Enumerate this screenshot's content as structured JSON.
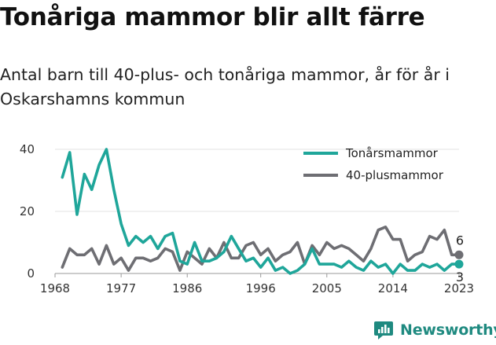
{
  "header": {
    "title": "Tonåriga mammor blir allt färre",
    "subtitle": "Antal barn till 40-plus- och tonåriga mammor, år för år i Oskarshamns kommun"
  },
  "brand": {
    "name": "Newsworthy",
    "icon": "newsworthy-logo-icon",
    "color": "#1f8a80"
  },
  "chart_data": {
    "type": "line",
    "x_ticks": [
      "1968",
      "1977",
      "1986",
      "1996",
      "2005",
      "2014",
      "2023"
    ],
    "y_ticks": [
      "0",
      "20",
      "40"
    ],
    "xlim": [
      1968,
      2023
    ],
    "ylim": [
      0,
      40
    ],
    "grid": true,
    "legend_position": "top-right",
    "x": [
      1969,
      1970,
      1971,
      1972,
      1973,
      1974,
      1975,
      1976,
      1977,
      1978,
      1979,
      1980,
      1981,
      1982,
      1983,
      1984,
      1985,
      1986,
      1987,
      1988,
      1989,
      1990,
      1991,
      1992,
      1993,
      1994,
      1995,
      1996,
      1997,
      1998,
      1999,
      2000,
      2001,
      2002,
      2003,
      2004,
      2005,
      2006,
      2007,
      2008,
      2009,
      2010,
      2011,
      2012,
      2013,
      2014,
      2015,
      2016,
      2017,
      2018,
      2019,
      2020,
      2021,
      2022,
      2023
    ],
    "series": [
      {
        "name": "Tonårsmammor",
        "color": "#1fa69a",
        "end_label": "3",
        "values": [
          31,
          39,
          19,
          32,
          27,
          35,
          40,
          27,
          16,
          9,
          12,
          10,
          12,
          8,
          12,
          13,
          4,
          3,
          10,
          4,
          4,
          5,
          7,
          12,
          8,
          4,
          5,
          2,
          5,
          1,
          2,
          0,
          1,
          3,
          8,
          3,
          3,
          3,
          2,
          4,
          2,
          1,
          4,
          2,
          3,
          0,
          3,
          1,
          1,
          3,
          2,
          3,
          1,
          3,
          3
        ]
      },
      {
        "name": "40-plusmammor",
        "color": "#6e6e73",
        "end_label": "6",
        "values": [
          2,
          8,
          6,
          6,
          8,
          3,
          9,
          3,
          5,
          1,
          5,
          5,
          4,
          5,
          8,
          7,
          1,
          7,
          5,
          3,
          8,
          5,
          10,
          5,
          5,
          9,
          10,
          6,
          8,
          4,
          6,
          7,
          10,
          3,
          9,
          6,
          10,
          8,
          9,
          8,
          6,
          4,
          8,
          14,
          15,
          11,
          11,
          4,
          6,
          7,
          12,
          11,
          14,
          6,
          6
        ]
      }
    ]
  }
}
